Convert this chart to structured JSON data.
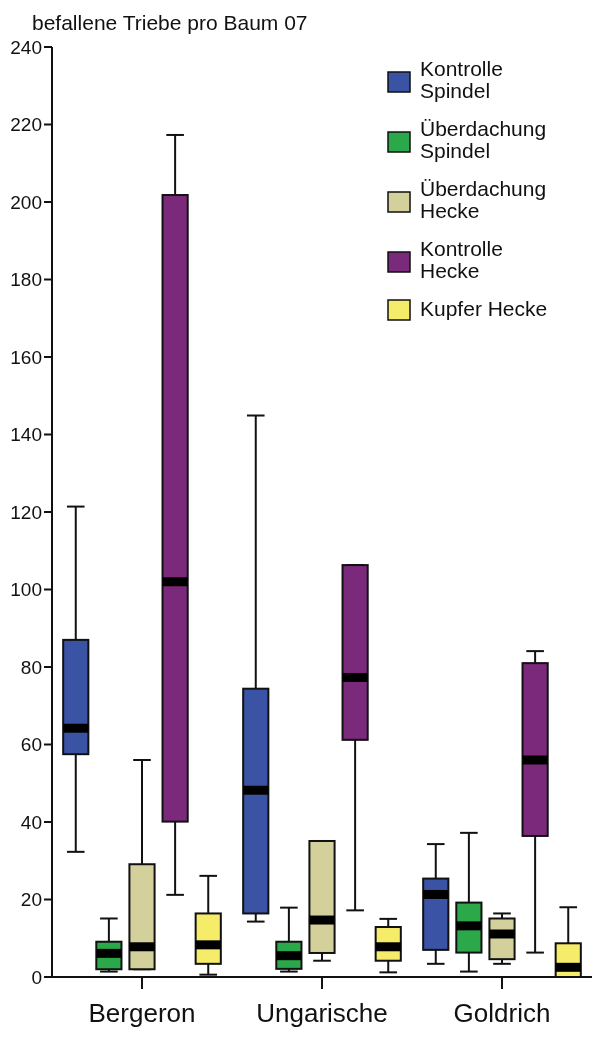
{
  "chart_data": {
    "type": "box",
    "title": "befallene Triebe pro Baum 07",
    "categories": [
      "Bergeron",
      "Ungarische",
      "Goldrich"
    ],
    "ylim": [
      0,
      240
    ],
    "yticks": [
      0,
      20,
      40,
      60,
      80,
      100,
      120,
      140,
      160,
      180,
      200,
      220,
      240
    ],
    "legend": "top right",
    "series": [
      {
        "name": "Kontrolle Spindel",
        "color": "#3a53a4",
        "boxes": [
          {
            "low": 32.3,
            "q1": 57.5,
            "median": 64.2,
            "q3": 87,
            "high": 121.4
          },
          {
            "low": 14.3,
            "q1": 16.4,
            "median": 48.2,
            "q3": 74.4,
            "high": 144.9
          },
          {
            "low": 3.4,
            "q1": 7,
            "median": 21.3,
            "q3": 25.4,
            "high": 34.3
          }
        ]
      },
      {
        "name": "Überdachung Spindel",
        "color": "#2aa84a",
        "boxes": [
          {
            "low": 1.4,
            "q1": 2,
            "median": 6.1,
            "q3": 9.1,
            "high": 15.1
          },
          {
            "low": 1.4,
            "q1": 2.1,
            "median": 5.5,
            "q3": 9.1,
            "high": 17.9
          },
          {
            "low": 1.4,
            "q1": 6.3,
            "median": 13.2,
            "q3": 19.2,
            "high": 37.2
          }
        ]
      },
      {
        "name": "Überdachung Hecke",
        "color": "#d3d09b",
        "boxes": [
          {
            "low": 2,
            "q1": 2,
            "median": 7.8,
            "q3": 29.1,
            "high": 56
          },
          {
            "low": 4.2,
            "q1": 6.2,
            "median": 14.7,
            "q3": 35.1,
            "high": 35.1
          },
          {
            "low": 3.4,
            "q1": 4.6,
            "median": 11.1,
            "q3": 15.1,
            "high": 16.4
          }
        ]
      },
      {
        "name": "Kontrolle Hecke",
        "color": "#7b2a7b",
        "boxes": [
          {
            "low": 21.2,
            "q1": 40.1,
            "median": 102,
            "q3": 201.8,
            "high": 217.3
          },
          {
            "low": 17.2,
            "q1": 61.2,
            "median": 77.3,
            "q3": 106.3,
            "high": 106.3
          },
          {
            "low": 6.3,
            "q1": 36.4,
            "median": 56,
            "q3": 81,
            "high": 84.1
          }
        ]
      },
      {
        "name": "Kupfer Hecke",
        "color": "#f5ec6a",
        "boxes": [
          {
            "low": 0.6,
            "q1": 3.4,
            "median": 8.3,
            "q3": 16.4,
            "high": 26.1
          },
          {
            "low": 1.2,
            "q1": 4.2,
            "median": 7.8,
            "q3": 12.9,
            "high": 15
          },
          {
            "low": 0,
            "q1": 0,
            "median": 2.5,
            "q3": 8.7,
            "high": 18
          }
        ]
      }
    ]
  }
}
